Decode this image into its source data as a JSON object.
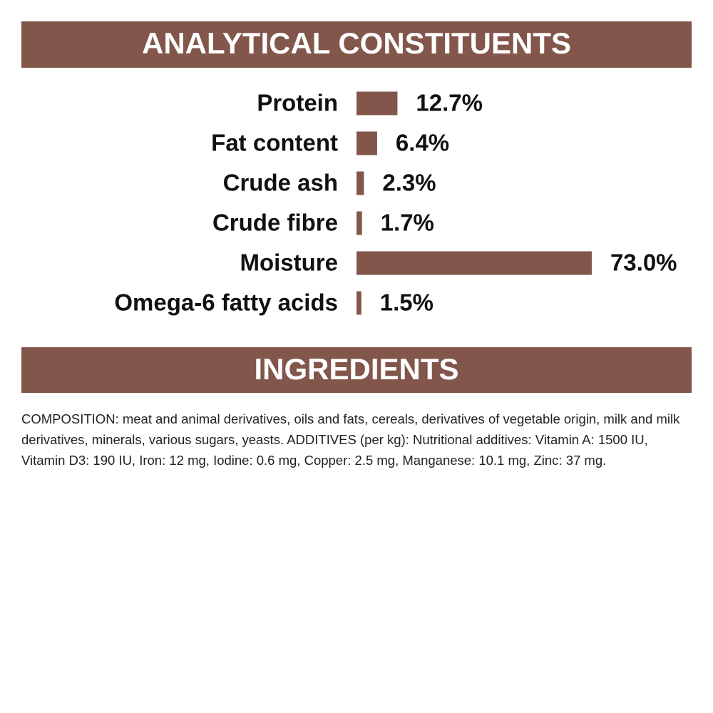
{
  "chart_data": {
    "type": "bar",
    "orientation": "horizontal",
    "title": "ANALYTICAL CONSTITUENTS",
    "categories": [
      "Protein",
      "Fat content",
      "Crude ash",
      "Crude fibre",
      "Moisture",
      "Omega-6 fatty acids"
    ],
    "values": [
      12.7,
      6.4,
      2.3,
      1.7,
      73.0,
      1.5
    ],
    "value_labels": [
      "12.7%",
      "6.4%",
      "2.3%",
      "1.7%",
      "73.0%",
      "1.5%"
    ],
    "color": "#82564a"
  },
  "ingredients": {
    "title": "INGREDIENTS",
    "text": "COMPOSITION: meat and animal derivatives, oils and fats, cereals, derivatives of vegetable origin, milk and milk derivatives, minerals, various sugars, yeasts. ADDITIVES (per kg): Nutritional additives: Vitamin A: 1500 IU, Vitamin D3: 190 IU, Iron: 12 mg, Iodine: 0.6 mg, Copper: 2.5 mg, Manganese: 10.1 mg, Zinc: 37 mg."
  }
}
